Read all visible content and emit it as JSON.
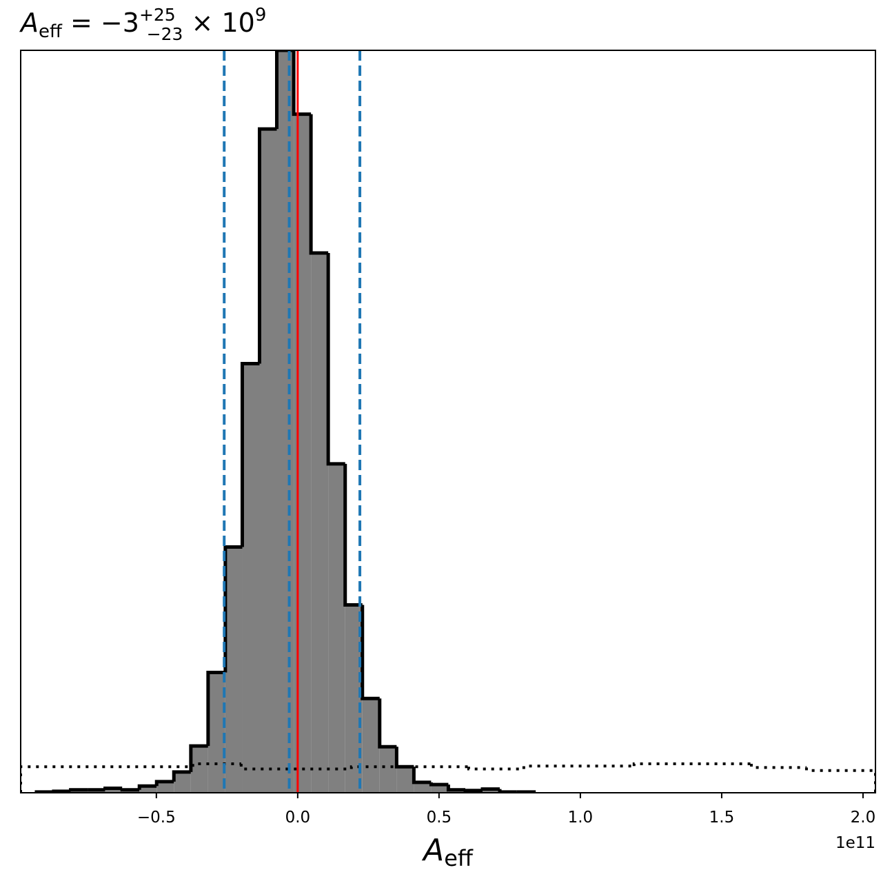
{
  "chart_data": {
    "type": "histogram",
    "title": {
      "symbol": "A",
      "subscript": "eff",
      "equals": " = −3",
      "sup": "+25",
      "sub": "−23",
      "times": " × 10",
      "exp": "9"
    },
    "xlabel": {
      "symbol": "A",
      "subscript": "eff"
    },
    "x_offset_label": "1e11",
    "xlim": [
      -0.98,
      2.044
    ],
    "ylim": [
      0,
      1
    ],
    "xticks": [
      {
        "value": -0.5,
        "label": "−0.5"
      },
      {
        "value": 0,
        "label": "0.0"
      },
      0.5,
      {
        "value": 1,
        "label": "1.0"
      },
      1.5,
      {
        "value": 2,
        "label": "2.0"
      }
    ],
    "bins": [
      -0.924,
      -0.863,
      -0.803,
      -0.742,
      -0.681,
      -0.621,
      -0.56,
      -0.499,
      -0.438,
      -0.378,
      -0.317,
      -0.256,
      -0.196,
      -0.135,
      -0.074,
      -0.014,
      0.047,
      0.108,
      0.168,
      0.229,
      0.29,
      0.35,
      0.411,
      0.472,
      0.533,
      0.593,
      0.654,
      0.715,
      0.775,
      0.836
    ],
    "counts": [
      0.001,
      0.002,
      0.004,
      0.004,
      0.006,
      0.004,
      0.009,
      0.015,
      0.028,
      0.063,
      0.162,
      0.331,
      0.578,
      0.894,
      1.0,
      0.914,
      0.727,
      0.443,
      0.253,
      0.127,
      0.062,
      0.035,
      0.014,
      0.011,
      0.004,
      0.003,
      0.005,
      0.001,
      0.001
    ],
    "fill_color": "#808080",
    "edge_color": "#000000",
    "prior": {
      "bins": [
        -0.98,
        -0.371,
        -0.2,
        0.19,
        0.605,
        0.8,
        1.19,
        1.605,
        1.8,
        2.044
      ],
      "counts": [
        0.035,
        0.039,
        0.032,
        0.035,
        0.032,
        0.036,
        0.039,
        0.034,
        0.03
      ],
      "color": "#000000"
    },
    "quantiles": [
      -0.26,
      -0.03,
      0.22
    ],
    "quantile_color": "#1f77b4",
    "truth": 0,
    "truth_color": "#ff0000"
  }
}
